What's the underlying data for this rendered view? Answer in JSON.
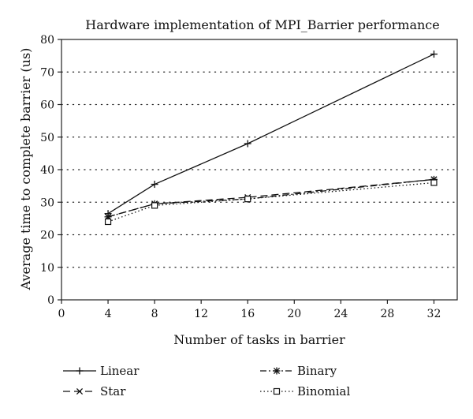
{
  "chart_data": {
    "type": "line",
    "title": "Hardware implementation of MPI_Barrier performance",
    "xlabel": "Number of tasks in barrier",
    "ylabel": "Average time to complete barrier (us)",
    "xlim": [
      0,
      34
    ],
    "ylim": [
      0,
      80
    ],
    "xticks": [
      0,
      4,
      8,
      12,
      16,
      20,
      24,
      28,
      32
    ],
    "yticks": [
      0,
      10,
      20,
      30,
      40,
      50,
      60,
      70,
      80
    ],
    "grid": "horizontal dotted",
    "legend_position": "bottom",
    "series": [
      {
        "name": "Linear",
        "marker": "plus",
        "dash": "solid",
        "x": [
          4,
          8,
          16,
          32
        ],
        "y": [
          26.5,
          35.5,
          48,
          75.5
        ]
      },
      {
        "name": "Star",
        "marker": "x",
        "dash": "dashed",
        "x": [
          4,
          8,
          16,
          32
        ],
        "y": [
          25.5,
          29.5,
          31.5,
          37
        ]
      },
      {
        "name": "Binary",
        "marker": "asterisk",
        "dash": "dash-dot",
        "x": [
          4,
          8,
          16,
          32
        ],
        "y": [
          25.5,
          29.5,
          31,
          37
        ]
      },
      {
        "name": "Binomial",
        "marker": "square",
        "dash": "dotted",
        "x": [
          4,
          8,
          16,
          32
        ],
        "y": [
          24,
          29,
          31,
          36
        ]
      }
    ]
  }
}
